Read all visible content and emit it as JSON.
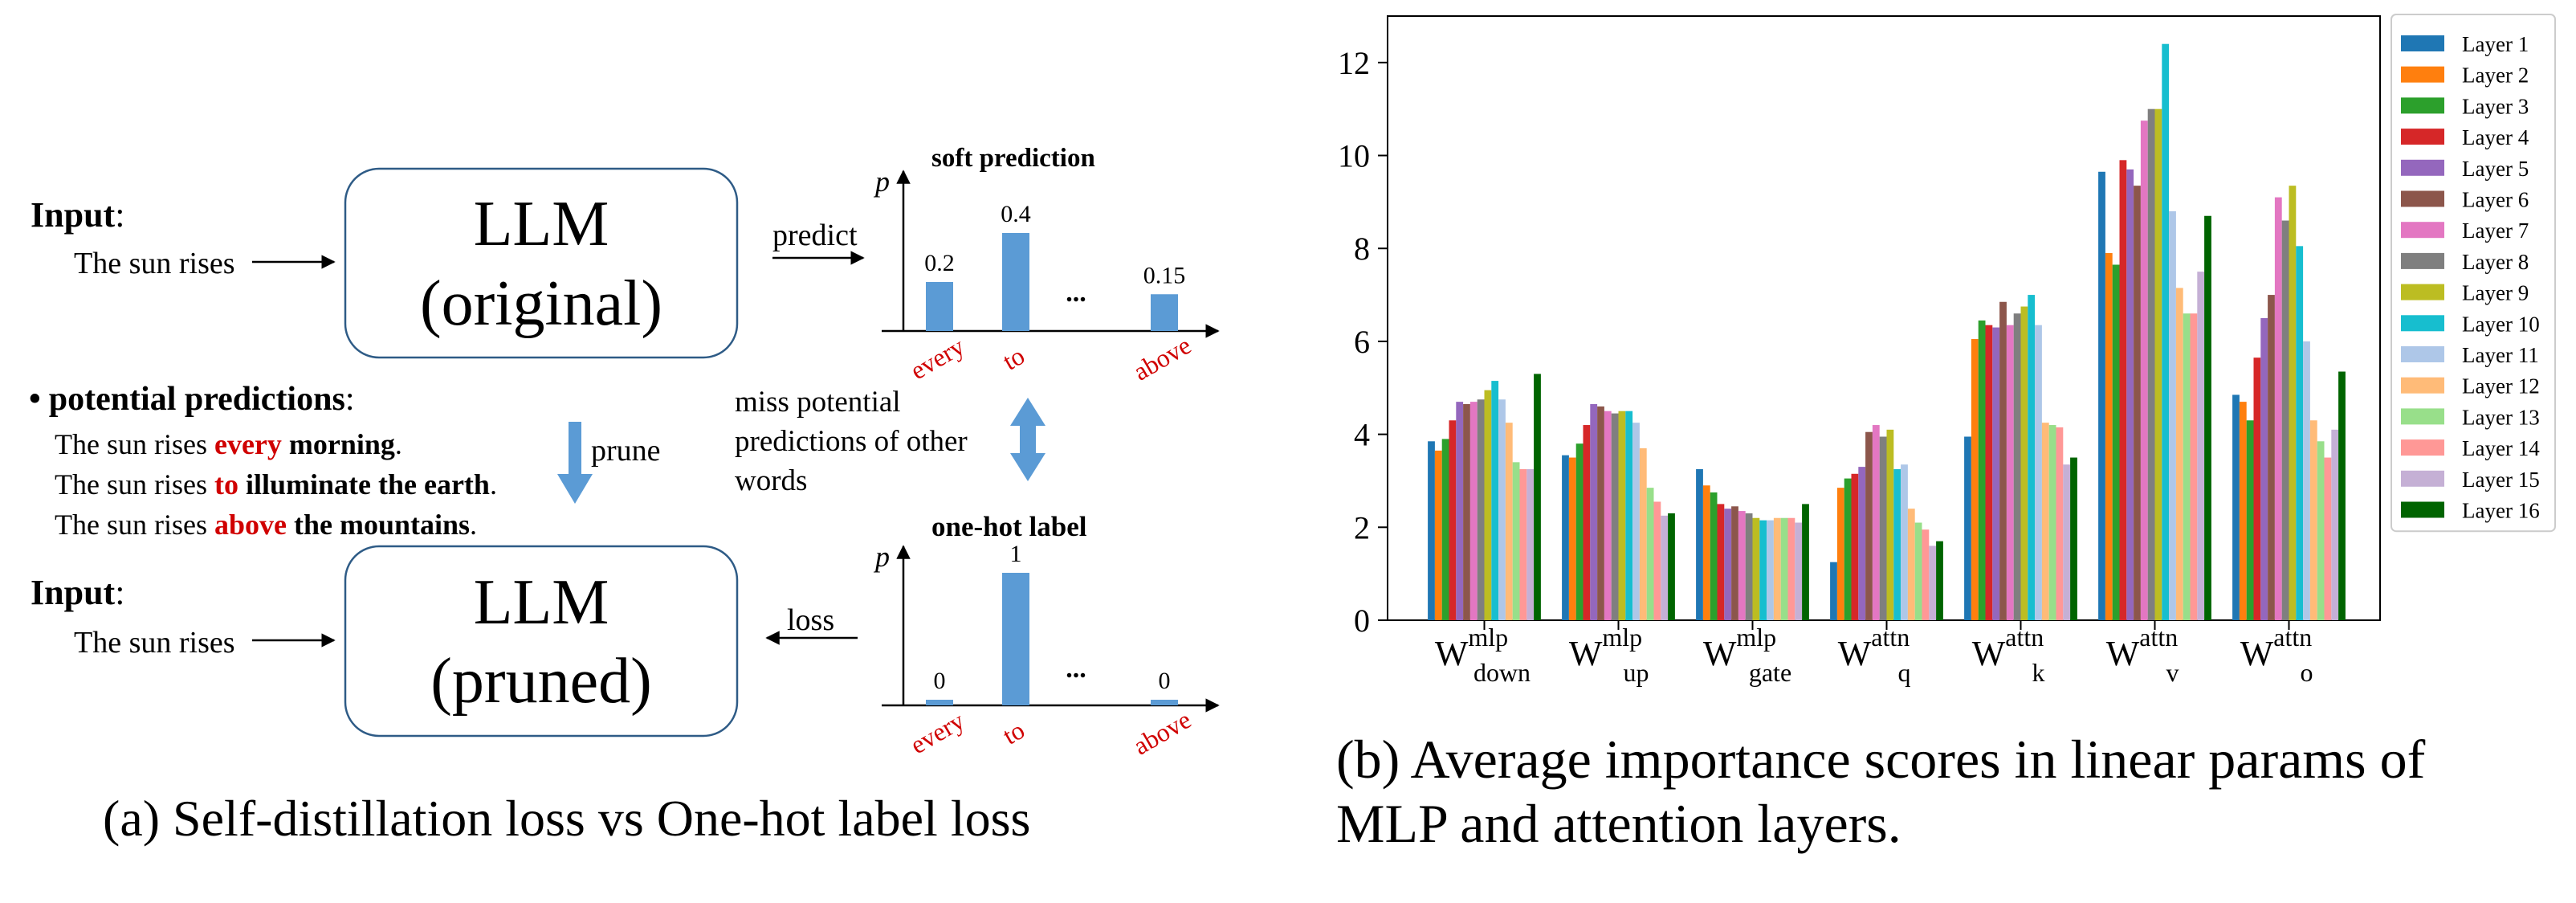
{
  "panel_a": {
    "input_label": "Input",
    "colon": ":",
    "input_text": "The sun rises",
    "llm_word": "LLM",
    "llm_original": "(original)",
    "llm_pruned": "(pruned)",
    "predict_label": "predict",
    "loss_label": "loss",
    "prune_label": "prune",
    "bullet": "•",
    "potential_title": "potential predictions",
    "prefix": "The sun rises ",
    "predictions": [
      {
        "word": "every",
        "rest": " morning",
        "end": "."
      },
      {
        "word": "to",
        "rest": " illuminate the earth",
        "end": "."
      },
      {
        "word": "above",
        "rest": " the mountains",
        "end": "."
      }
    ],
    "miss_lines": [
      "miss potential",
      "predictions of other",
      "words"
    ],
    "soft_title": "soft prediction",
    "onehot_title": "one-hot label",
    "p_label": "p",
    "ellipsis": "...",
    "caption": "(a) Self-distillation loss vs One-hot label loss",
    "soft_chart": {
      "type": "bar",
      "categories": [
        "every",
        "to",
        "above"
      ],
      "values": [
        0.2,
        0.4,
        0.15
      ],
      "value_labels": [
        "0.2",
        "0.4",
        "0.15"
      ],
      "ylabel": "p",
      "title": "soft prediction"
    },
    "onehot_chart": {
      "type": "bar",
      "categories": [
        "every",
        "to",
        "above"
      ],
      "values": [
        0,
        1,
        0
      ],
      "value_labels": [
        "0",
        "1",
        "0"
      ],
      "ylabel": "p",
      "title": "one-hot label"
    }
  },
  "panel_b": {
    "caption_lines": [
      "(b) Average importance scores in linear params of",
      "MLP and attention layers."
    ]
  },
  "chart_data": {
    "type": "bar",
    "title": "",
    "xlabel": "",
    "ylabel": "",
    "ylim": [
      0,
      13
    ],
    "yticks": [
      0,
      2,
      4,
      6,
      8,
      10,
      12
    ],
    "ytick_labels": [
      "0",
      "2",
      "4",
      "6",
      "8",
      "10",
      "12"
    ],
    "categories": [
      {
        "base": "W",
        "sup": "mlp",
        "sub": "down"
      },
      {
        "base": "W",
        "sup": "mlp",
        "sub": "up"
      },
      {
        "base": "W",
        "sup": "mlp",
        "sub": "gate"
      },
      {
        "base": "W",
        "sup": "attn",
        "sub": "q"
      },
      {
        "base": "W",
        "sup": "attn",
        "sub": "k"
      },
      {
        "base": "W",
        "sup": "attn",
        "sub": "v"
      },
      {
        "base": "W",
        "sup": "attn",
        "sub": "o"
      }
    ],
    "legend_position": "right",
    "series": [
      {
        "name": "Layer 1",
        "color": "#1f77b4",
        "values": [
          3.85,
          3.55,
          3.25,
          1.25,
          3.95,
          9.65,
          4.85
        ]
      },
      {
        "name": "Layer 2",
        "color": "#ff7f0e",
        "values": [
          3.65,
          3.5,
          2.9,
          2.85,
          6.05,
          7.9,
          4.7
        ]
      },
      {
        "name": "Layer 3",
        "color": "#2ca02c",
        "values": [
          3.9,
          3.8,
          2.75,
          3.05,
          6.45,
          7.65,
          4.3
        ]
      },
      {
        "name": "Layer 4",
        "color": "#d62728",
        "values": [
          4.3,
          4.2,
          2.5,
          3.15,
          6.35,
          9.9,
          5.65
        ]
      },
      {
        "name": "Layer 5",
        "color": "#9467bd",
        "values": [
          4.7,
          4.65,
          2.4,
          3.3,
          6.3,
          9.7,
          6.5
        ]
      },
      {
        "name": "Layer 6",
        "color": "#8c564b",
        "values": [
          4.65,
          4.6,
          2.45,
          4.05,
          6.85,
          9.35,
          7.0
        ]
      },
      {
        "name": "Layer 7",
        "color": "#e377c2",
        "values": [
          4.7,
          4.5,
          2.35,
          4.2,
          6.35,
          10.75,
          9.1
        ]
      },
      {
        "name": "Layer 8",
        "color": "#7f7f7f",
        "values": [
          4.75,
          4.45,
          2.3,
          3.95,
          6.6,
          11.0,
          8.6
        ]
      },
      {
        "name": "Layer 9",
        "color": "#bcbd22",
        "values": [
          4.95,
          4.5,
          2.2,
          4.1,
          6.75,
          11.0,
          9.35
        ]
      },
      {
        "name": "Layer 10",
        "color": "#17becf",
        "values": [
          5.15,
          4.5,
          2.15,
          3.25,
          7.0,
          12.4,
          8.05
        ]
      },
      {
        "name": "Layer 11",
        "color": "#aec7e8",
        "values": [
          4.75,
          4.25,
          2.15,
          3.35,
          6.35,
          8.8,
          6.0
        ]
      },
      {
        "name": "Layer 12",
        "color": "#ffbb78",
        "values": [
          4.25,
          3.7,
          2.2,
          2.4,
          4.25,
          7.15,
          4.3
        ]
      },
      {
        "name": "Layer 13",
        "color": "#98df8a",
        "values": [
          3.4,
          2.85,
          2.2,
          2.1,
          4.2,
          6.6,
          3.85
        ]
      },
      {
        "name": "Layer 14",
        "color": "#ff9896",
        "values": [
          3.25,
          2.55,
          2.2,
          1.95,
          4.15,
          6.6,
          3.5
        ]
      },
      {
        "name": "Layer 15",
        "color": "#c5b0d5",
        "values": [
          3.25,
          2.25,
          2.1,
          1.6,
          3.35,
          7.5,
          4.1
        ]
      },
      {
        "name": "Layer 16",
        "color": "#006400",
        "values": [
          5.3,
          2.3,
          2.5,
          1.7,
          3.5,
          8.7,
          5.35
        ]
      }
    ]
  }
}
